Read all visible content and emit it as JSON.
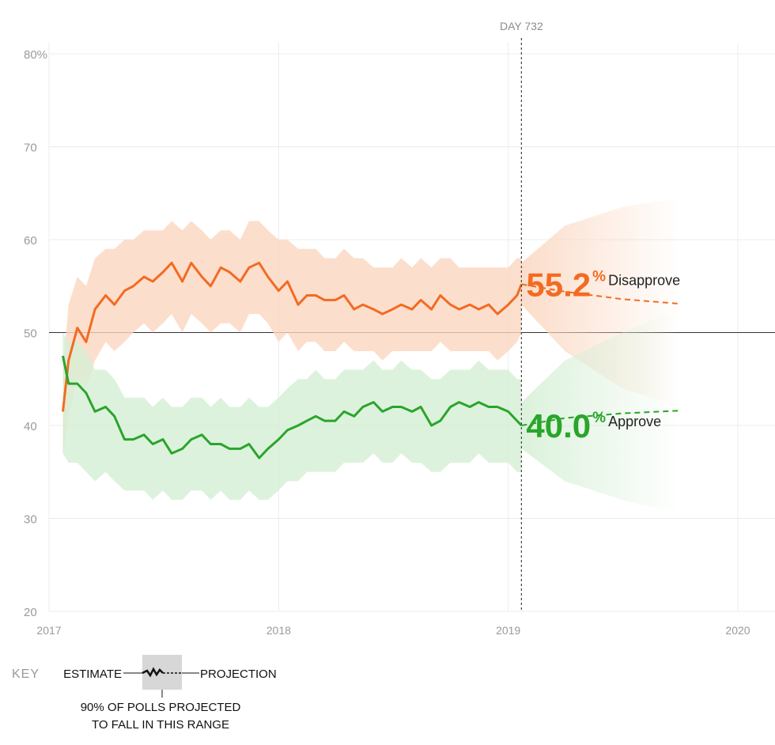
{
  "chart_data": {
    "type": "line",
    "xlabel": "",
    "ylabel": "",
    "x_ticks": [
      "2017",
      "2018",
      "2019",
      "2020"
    ],
    "y_ticks": [
      "20",
      "30",
      "40",
      "50",
      "60",
      "70",
      "80%"
    ],
    "ylim": [
      20,
      80
    ],
    "xlim": [
      "2017-01-01",
      "2020-03-20"
    ],
    "reference_line": 50,
    "marker": {
      "label": "DAY 732",
      "date": "2019-01-22"
    },
    "grid": true,
    "series": [
      {
        "name": "Disapprove",
        "color": "#f26b21",
        "band_color": "#fbd6c0",
        "current_value": "55.2",
        "x": [
          "2017-01-23",
          "2017-02-01",
          "2017-02-15",
          "2017-03-01",
          "2017-03-15",
          "2017-04-01",
          "2017-04-15",
          "2017-05-01",
          "2017-05-15",
          "2017-06-01",
          "2017-06-15",
          "2017-07-01",
          "2017-07-15",
          "2017-08-01",
          "2017-08-15",
          "2017-09-01",
          "2017-09-15",
          "2017-10-01",
          "2017-10-15",
          "2017-11-01",
          "2017-11-15",
          "2017-12-01",
          "2017-12-15",
          "2018-01-01",
          "2018-01-15",
          "2018-02-01",
          "2018-02-15",
          "2018-03-01",
          "2018-03-15",
          "2018-04-01",
          "2018-04-15",
          "2018-05-01",
          "2018-05-15",
          "2018-06-01",
          "2018-06-15",
          "2018-07-01",
          "2018-07-15",
          "2018-08-01",
          "2018-08-15",
          "2018-09-01",
          "2018-09-15",
          "2018-10-01",
          "2018-10-15",
          "2018-11-01",
          "2018-11-15",
          "2018-12-01",
          "2018-12-15",
          "2019-01-01",
          "2019-01-15",
          "2019-01-22"
        ],
        "values": [
          41.5,
          47.0,
          50.5,
          49.0,
          52.5,
          54.0,
          53.0,
          54.5,
          55.0,
          56.0,
          55.5,
          56.5,
          57.5,
          55.5,
          57.5,
          56.0,
          55.0,
          57.0,
          56.5,
          55.5,
          57.0,
          57.5,
          56.0,
          54.5,
          55.5,
          53.0,
          54.0,
          54.0,
          53.5,
          53.5,
          54.0,
          52.5,
          53.0,
          52.5,
          52.0,
          52.5,
          53.0,
          52.5,
          53.5,
          52.5,
          54.0,
          53.0,
          52.5,
          53.0,
          52.5,
          53.0,
          52.0,
          53.0,
          54.0,
          55.2
        ],
        "band_upper": [
          46,
          53,
          56,
          55,
          58,
          59,
          59,
          60,
          60,
          61,
          61,
          61,
          62,
          61,
          62,
          61,
          60,
          61,
          61,
          60,
          62,
          62,
          61,
          60,
          60,
          59,
          59,
          59,
          58,
          58,
          59,
          58,
          58,
          57,
          57,
          57,
          58,
          57,
          58,
          57,
          58,
          58,
          57,
          57,
          57,
          57,
          57,
          57,
          58,
          58
        ],
        "band_lower": [
          37,
          41,
          45,
          44,
          47,
          49,
          48,
          49,
          50,
          51,
          50,
          51,
          52,
          50,
          52,
          51,
          50,
          51,
          51,
          50,
          52,
          52,
          51,
          49,
          50,
          48,
          49,
          49,
          48,
          48,
          49,
          48,
          48,
          48,
          47,
          48,
          48,
          48,
          48,
          48,
          49,
          48,
          48,
          48,
          48,
          48,
          47,
          48,
          49,
          50
        ],
        "projection_x": [
          "2019-01-22",
          "2019-04-01",
          "2019-07-01",
          "2019-10-01"
        ],
        "projection_values": [
          55.2,
          54.4,
          53.6,
          53.1
        ],
        "projection_upper": [
          57.5,
          61.5,
          63.5,
          64.5
        ],
        "projection_lower": [
          53.0,
          48.0,
          44.0,
          42.0
        ]
      },
      {
        "name": "Approve",
        "color": "#2aa52b",
        "band_color": "#d5efd5",
        "current_value": "40.0",
        "x": [
          "2017-01-23",
          "2017-02-01",
          "2017-02-15",
          "2017-03-01",
          "2017-03-15",
          "2017-04-01",
          "2017-04-15",
          "2017-05-01",
          "2017-05-15",
          "2017-06-01",
          "2017-06-15",
          "2017-07-01",
          "2017-07-15",
          "2017-08-01",
          "2017-08-15",
          "2017-09-01",
          "2017-09-15",
          "2017-10-01",
          "2017-10-15",
          "2017-11-01",
          "2017-11-15",
          "2017-12-01",
          "2017-12-15",
          "2018-01-01",
          "2018-01-15",
          "2018-02-01",
          "2018-02-15",
          "2018-03-01",
          "2018-03-15",
          "2018-04-01",
          "2018-04-15",
          "2018-05-01",
          "2018-05-15",
          "2018-06-01",
          "2018-06-15",
          "2018-07-01",
          "2018-07-15",
          "2018-08-01",
          "2018-08-15",
          "2018-09-01",
          "2018-09-15",
          "2018-10-01",
          "2018-10-15",
          "2018-11-01",
          "2018-11-15",
          "2018-12-01",
          "2018-12-15",
          "2019-01-01",
          "2019-01-15",
          "2019-01-22"
        ],
        "values": [
          47.5,
          44.5,
          44.5,
          43.5,
          41.5,
          42.0,
          41.0,
          38.5,
          38.5,
          39.0,
          38.0,
          38.5,
          37.0,
          37.5,
          38.5,
          39.0,
          38.0,
          38.0,
          37.5,
          37.5,
          38.0,
          36.5,
          37.5,
          38.5,
          39.5,
          40.0,
          40.5,
          41.0,
          40.5,
          40.5,
          41.5,
          41.0,
          42.0,
          42.5,
          41.5,
          42.0,
          42.0,
          41.5,
          42.0,
          40.0,
          40.5,
          42.0,
          42.5,
          42.0,
          42.5,
          42.0,
          42.0,
          41.5,
          40.5,
          40.0
        ],
        "band_upper": [
          50,
          49,
          49,
          48,
          46,
          46,
          45,
          43,
          43,
          43,
          42,
          43,
          42,
          42,
          43,
          43,
          42,
          43,
          42,
          42,
          43,
          42,
          42,
          43,
          44,
          45,
          45,
          46,
          45,
          45,
          46,
          46,
          46,
          47,
          46,
          46,
          47,
          46,
          46,
          45,
          45,
          46,
          46,
          46,
          47,
          46,
          46,
          46,
          45,
          45
        ],
        "band_lower": [
          37,
          36,
          36,
          35,
          34,
          35,
          34,
          33,
          33,
          33,
          32,
          33,
          32,
          32,
          33,
          33,
          32,
          33,
          32,
          32,
          33,
          32,
          32,
          33,
          34,
          34,
          35,
          35,
          35,
          35,
          36,
          36,
          36,
          37,
          36,
          36,
          37,
          36,
          36,
          35,
          35,
          36,
          36,
          36,
          37,
          36,
          36,
          36,
          35,
          35
        ],
        "projection_x": [
          "2019-01-22",
          "2019-04-01",
          "2019-07-01",
          "2019-10-01"
        ],
        "projection_values": [
          40.0,
          40.8,
          41.3,
          41.6
        ],
        "projection_upper": [
          42.5,
          47.0,
          50.0,
          52.5
        ],
        "projection_lower": [
          37.5,
          34.0,
          32.0,
          30.5
        ]
      }
    ]
  },
  "key": {
    "title": "KEY",
    "estimate": "ESTIMATE",
    "projection": "PROJECTION",
    "range_line1": "90% OF POLLS PROJECTED",
    "range_line2": "TO FALL IN THIS RANGE"
  }
}
